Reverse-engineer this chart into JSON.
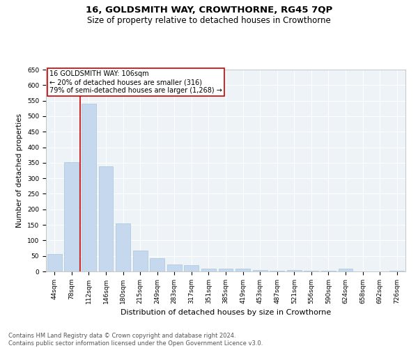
{
  "title": "16, GOLDSMITH WAY, CROWTHORNE, RG45 7QP",
  "subtitle": "Size of property relative to detached houses in Crowthorne",
  "xlabel": "Distribution of detached houses by size in Crowthorne",
  "ylabel": "Number of detached properties",
  "bar_values": [
    55,
    353,
    540,
    338,
    155,
    68,
    42,
    22,
    20,
    8,
    10,
    8,
    5,
    3,
    5,
    3,
    3,
    8,
    0,
    0,
    3
  ],
  "bar_labels": [
    "44sqm",
    "78sqm",
    "112sqm",
    "146sqm",
    "180sqm",
    "215sqm",
    "249sqm",
    "283sqm",
    "317sqm",
    "351sqm",
    "385sqm",
    "419sqm",
    "453sqm",
    "487sqm",
    "521sqm",
    "556sqm",
    "590sqm",
    "624sqm",
    "658sqm",
    "692sqm",
    "726sqm"
  ],
  "bar_color": "#c5d8ed",
  "bar_edge_color": "#a8c4dc",
  "marker_index": 2,
  "marker_line_color": "#cc0000",
  "marker_box_text_line1": "16 GOLDSMITH WAY: 106sqm",
  "marker_box_text_line2": "← 20% of detached houses are smaller (316)",
  "marker_box_text_line3": "79% of semi-detached houses are larger (1,268) →",
  "marker_box_color": "#ffffff",
  "marker_box_edge_color": "#cc0000",
  "annotation_fontsize": 7.0,
  "ylim": [
    0,
    650
  ],
  "yticks": [
    0,
    50,
    100,
    150,
    200,
    250,
    300,
    350,
    400,
    450,
    500,
    550,
    600,
    650
  ],
  "title_fontsize": 9.5,
  "subtitle_fontsize": 8.5,
  "xlabel_fontsize": 8.0,
  "ylabel_fontsize": 7.5,
  "tick_fontsize": 6.5,
  "footer_line1": "Contains HM Land Registry data © Crown copyright and database right 2024.",
  "footer_line2": "Contains public sector information licensed under the Open Government Licence v3.0.",
  "footer_fontsize": 6.0,
  "background_color": "#ffffff",
  "plot_bg_color": "#eef3f8",
  "grid_color": "#ffffff"
}
